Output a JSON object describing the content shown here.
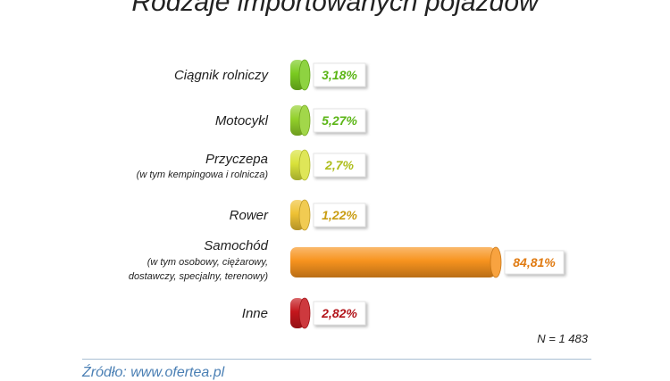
{
  "chart_data": {
    "type": "bar",
    "orientation": "horizontal",
    "title": "Rodzaje importowanych pojazdów",
    "categories": [
      {
        "label": "Ciągnik rolniczy",
        "sublabel": "",
        "value": 3.18,
        "value_label": "3,18%",
        "color": "#7acb20",
        "text_color": "#5bb516"
      },
      {
        "label": "Motocykl",
        "sublabel": "",
        "value": 5.27,
        "value_label": "5,27%",
        "color": "#92d02a",
        "text_color": "#5bb516"
      },
      {
        "label": "Przyczepa",
        "sublabel": "(w tym kempingowa i rolnicza)",
        "value": 2.7,
        "value_label": "2,7%",
        "color": "#d9e23a",
        "text_color": "#aebd1c"
      },
      {
        "label": "Rower",
        "sublabel": "",
        "value": 1.22,
        "value_label": "1,22%",
        "color": "#efc234",
        "text_color": "#c99d12"
      },
      {
        "label": "Samochód",
        "sublabel": "(w tym osobowy, ciężarowy, dostawczy, specjalny, terenowy)",
        "value": 84.81,
        "value_label": "84,81%",
        "color": "#f7931e",
        "text_color": "#e07a10"
      },
      {
        "label": "Inne",
        "sublabel": "",
        "value": 2.82,
        "value_label": "2,82%",
        "color": "#c4161c",
        "text_color": "#b2151b"
      }
    ],
    "value_format": "percent"
  },
  "note": "N = 1 483",
  "source": "Źródło: www.ofertea.pl"
}
